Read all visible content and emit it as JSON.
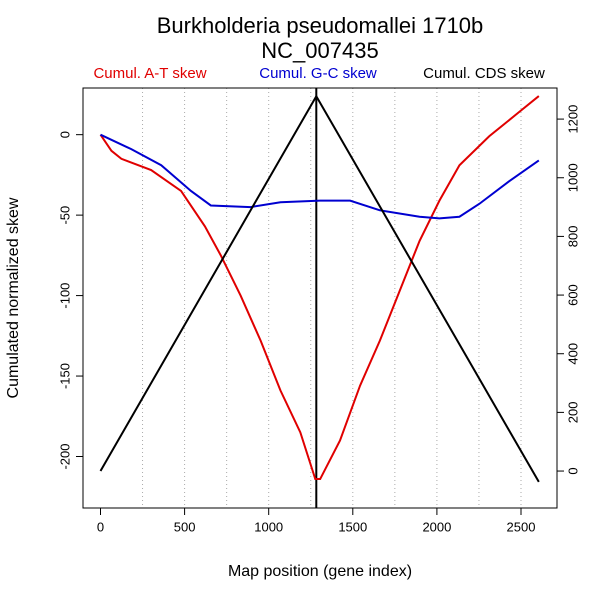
{
  "chart_data": {
    "type": "line",
    "title": "Burkholderia pseudomallei 1710b",
    "subtitle": "NC_007435",
    "x_label": "Map position (gene index)",
    "y_label": "Cumulated normalized skew",
    "xlim": [
      -104,
      2714
    ],
    "ylim": [
      -232,
      29
    ],
    "y2lim": [
      -126,
      1306
    ],
    "xticks": [
      0,
      500,
      1000,
      1500,
      2000,
      2500
    ],
    "yticks": [
      -200,
      -150,
      -100,
      -50,
      0
    ],
    "y2ticks": [
      0,
      200,
      400,
      600,
      800,
      1000,
      1200
    ],
    "xgrid": [
      250,
      500,
      750,
      1000,
      1250,
      1500,
      1750,
      2000,
      2250,
      2500
    ],
    "vline_x": 1283,
    "series": [
      {
        "name": "Cumul. A-T skew",
        "color": "#e00000",
        "x": [
          0,
          65,
          124,
          301,
          479,
          621,
          715,
          833,
          952,
          1070,
          1188,
          1277,
          1306,
          1424,
          1543,
          1661,
          1779,
          1897,
          2015,
          2134,
          2311,
          2488,
          2606
        ],
        "values": [
          0,
          -10,
          -15,
          -22,
          -35,
          -57,
          -75,
          -100,
          -128,
          -159,
          -185,
          -214,
          -214,
          -190,
          -156,
          -128,
          -97,
          -66,
          -41,
          -19,
          -1,
          14,
          24
        ]
      },
      {
        "name": "Cumul. G-C skew",
        "color": "#0000d0",
        "x": [
          0,
          183,
          361,
          538,
          656,
          892,
          1070,
          1306,
          1484,
          1661,
          1897,
          2015,
          2134,
          2252,
          2429,
          2606
        ],
        "values": [
          0,
          -9,
          -19,
          -35,
          -44,
          -45,
          -42,
          -41,
          -41,
          -47,
          -51,
          -52,
          -51,
          -43,
          -29,
          -16
        ]
      },
      {
        "name": "Cumul. CDS skew",
        "color": "#000000",
        "axis": "y2",
        "x": [
          0,
          1283,
          2606
        ],
        "values": [
          0,
          1278,
          -37
        ]
      }
    ]
  }
}
